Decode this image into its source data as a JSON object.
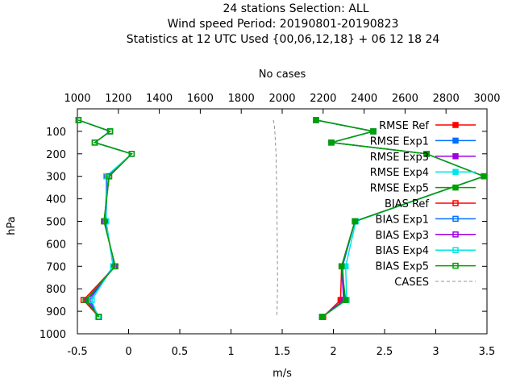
{
  "chart_data": {
    "type": "line",
    "title_lines": [
      "24 stations Selection: ALL",
      "Wind speed  Period: 20190801-20190823",
      "Statistics at 12 UTC  Used {00,06,12,18} + 06 12 18 24"
    ],
    "xlabel": "m/s",
    "ylabel": "hPa",
    "x2label": "No cases",
    "xlim": [
      -0.5,
      3.5
    ],
    "ylim": [
      1000,
      0
    ],
    "x2lim": [
      1000,
      3000
    ],
    "xticks": [
      "-0.5",
      "0",
      "0.5",
      "1",
      "1.5",
      "2",
      "2.5",
      "3",
      "3.5"
    ],
    "yticks": [
      "100",
      "200",
      "300",
      "400",
      "500",
      "600",
      "700",
      "800",
      "900",
      "1000"
    ],
    "x2ticks": [
      "1000",
      "1200",
      "1400",
      "1600",
      "1800",
      "2000",
      "2200",
      "2400",
      "2600",
      "2800",
      "3000"
    ],
    "legend_position": "top-right",
    "levels": [
      50,
      100,
      150,
      200,
      300,
      500,
      700,
      850,
      925
    ],
    "series": [
      {
        "name": "RMSE Ref",
        "color": "#ff0000",
        "marker": "filled",
        "values": [
          1.83,
          2.39,
          1.98,
          2.91,
          3.47,
          2.21,
          2.08,
          2.07,
          1.9
        ]
      },
      {
        "name": "RMSE Exp1",
        "color": "#0070ff",
        "marker": "filled",
        "values": [
          1.83,
          2.39,
          1.98,
          2.91,
          3.47,
          2.21,
          2.09,
          2.11,
          1.89
        ]
      },
      {
        "name": "RMSE Exp3",
        "color": "#a000e0",
        "marker": "filled",
        "values": [
          1.83,
          2.39,
          1.98,
          2.91,
          3.47,
          2.21,
          2.08,
          2.1,
          1.89
        ]
      },
      {
        "name": "RMSE Exp4",
        "color": "#00e5e5",
        "marker": "filled",
        "values": [
          1.83,
          2.39,
          1.98,
          2.91,
          3.47,
          2.22,
          2.12,
          2.13,
          1.89
        ]
      },
      {
        "name": "RMSE Exp5",
        "color": "#00a000",
        "marker": "filled",
        "values": [
          1.83,
          2.39,
          1.98,
          2.91,
          3.47,
          2.21,
          2.08,
          2.12,
          1.89
        ]
      },
      {
        "name": "BIAS Ref",
        "color": "#ff0000",
        "marker": "open",
        "values": [
          -0.49,
          -0.18,
          -0.33,
          0.03,
          -0.19,
          -0.24,
          -0.13,
          -0.44,
          -0.29
        ]
      },
      {
        "name": "BIAS Exp1",
        "color": "#0070ff",
        "marker": "open",
        "values": [
          -0.49,
          -0.18,
          -0.33,
          0.03,
          -0.21,
          -0.22,
          -0.15,
          -0.38,
          -0.29
        ]
      },
      {
        "name": "BIAS Exp3",
        "color": "#a000e0",
        "marker": "open",
        "values": [
          -0.49,
          -0.18,
          -0.33,
          0.03,
          -0.21,
          -0.23,
          -0.14,
          -0.4,
          -0.29
        ]
      },
      {
        "name": "BIAS Exp4",
        "color": "#00e5e5",
        "marker": "open",
        "values": [
          -0.49,
          -0.18,
          -0.33,
          0.03,
          -0.22,
          -0.22,
          -0.15,
          -0.36,
          -0.3
        ]
      },
      {
        "name": "BIAS Exp5",
        "color": "#00a000",
        "marker": "open",
        "values": [
          -0.49,
          -0.18,
          -0.33,
          0.03,
          -0.19,
          -0.24,
          -0.13,
          -0.42,
          -0.29
        ]
      }
    ],
    "cases": {
      "name": "CASES",
      "color": "#909090",
      "dash": true,
      "axis": "x2",
      "points": [
        [
          1957,
          50
        ],
        [
          1961,
          70
        ],
        [
          1964,
          100
        ],
        [
          1967,
          150
        ],
        [
          1970,
          200
        ],
        [
          1972,
          300
        ],
        [
          1974,
          400
        ],
        [
          1975,
          500
        ],
        [
          1976,
          600
        ],
        [
          1977,
          700
        ],
        [
          1977,
          800
        ],
        [
          1976,
          850
        ],
        [
          1975,
          900
        ],
        [
          1974,
          925
        ]
      ]
    }
  }
}
